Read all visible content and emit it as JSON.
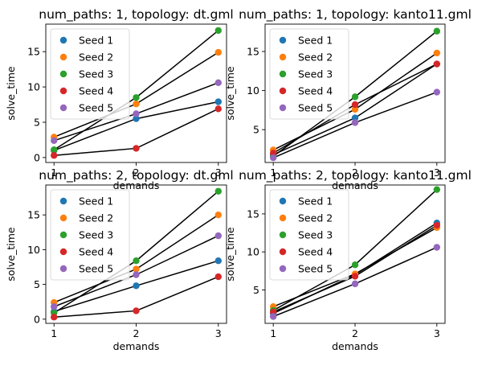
{
  "chart_data": [
    {
      "type": "scatter",
      "title": "num_paths: 1, topology: dt.gml",
      "xlabel": "demands",
      "ylabel": "solve_time",
      "x": [
        1,
        2,
        3
      ],
      "xticks": [
        "1",
        "2",
        "3"
      ],
      "yticks": [
        "0",
        "5",
        "10",
        "15"
      ],
      "xlim": [
        0.9,
        3.1
      ],
      "ylim": [
        -0.7,
        18.9
      ],
      "grid": false,
      "legend": "top-left",
      "connect_lines": true,
      "series": [
        {
          "name": "Seed 1",
          "values": [
            1.0,
            5.5,
            7.9
          ]
        },
        {
          "name": "Seed 2",
          "values": [
            2.9,
            7.6,
            14.9
          ]
        },
        {
          "name": "Seed 3",
          "values": [
            1.1,
            8.5,
            18.0
          ]
        },
        {
          "name": "Seed 4",
          "values": [
            0.3,
            1.3,
            6.9
          ]
        },
        {
          "name": "Seed 5",
          "values": [
            2.4,
            6.2,
            10.6
          ]
        }
      ]
    },
    {
      "type": "scatter",
      "title": "num_paths: 1, topology: kanto11.gml",
      "xlabel": "demands",
      "ylabel": "solve_time",
      "x": [
        1,
        2,
        3
      ],
      "xticks": [
        "1",
        "2",
        "3"
      ],
      "yticks": [
        "5",
        "10",
        "15"
      ],
      "xlim": [
        0.9,
        3.1
      ],
      "ylim": [
        0.8,
        18.5
      ],
      "grid": false,
      "legend": "top-left",
      "connect_lines": true,
      "series": [
        {
          "name": "Seed 1",
          "values": [
            1.8,
            6.5,
            13.4
          ]
        },
        {
          "name": "Seed 2",
          "values": [
            2.4,
            7.6,
            14.8
          ]
        },
        {
          "name": "Seed 3",
          "values": [
            1.6,
            9.2,
            17.6
          ]
        },
        {
          "name": "Seed 4",
          "values": [
            2.0,
            8.2,
            13.4
          ]
        },
        {
          "name": "Seed 5",
          "values": [
            1.4,
            5.9,
            9.8
          ]
        }
      ]
    },
    {
      "type": "scatter",
      "title": "num_paths: 2, topology: dt.gml",
      "xlabel": "demands",
      "ylabel": "solve_time",
      "x": [
        1,
        2,
        3
      ],
      "xticks": [
        "1",
        "2",
        "3"
      ],
      "yticks": [
        "0",
        "5",
        "10",
        "15"
      ],
      "xlim": [
        0.9,
        3.1
      ],
      "ylim": [
        -0.6,
        19.3
      ],
      "grid": false,
      "legend": "top-left",
      "connect_lines": true,
      "series": [
        {
          "name": "Seed 1",
          "values": [
            1.1,
            4.8,
            8.4
          ]
        },
        {
          "name": "Seed 2",
          "values": [
            2.4,
            7.2,
            15.0
          ]
        },
        {
          "name": "Seed 3",
          "values": [
            0.9,
            8.4,
            18.4
          ]
        },
        {
          "name": "Seed 4",
          "values": [
            0.3,
            1.2,
            6.1
          ]
        },
        {
          "name": "Seed 5",
          "values": [
            1.8,
            6.4,
            12.0
          ]
        }
      ]
    },
    {
      "type": "scatter",
      "title": "num_paths: 2, topology: kanto11.gml",
      "xlabel": "demands",
      "ylabel": "solve_time",
      "x": [
        1,
        2,
        3
      ],
      "xticks": [
        "1",
        "2",
        "3"
      ],
      "yticks": [
        "5",
        "10",
        "15"
      ],
      "xlim": [
        0.9,
        3.1
      ],
      "ylim": [
        0.6,
        18.8
      ],
      "grid": false,
      "legend": "top-left",
      "connect_lines": true,
      "series": [
        {
          "name": "Seed 1",
          "values": [
            1.9,
            7.0,
            13.8
          ]
        },
        {
          "name": "Seed 2",
          "values": [
            2.8,
            7.1,
            13.2
          ]
        },
        {
          "name": "Seed 3",
          "values": [
            2.3,
            8.3,
            18.2
          ]
        },
        {
          "name": "Seed 4",
          "values": [
            2.1,
            6.8,
            13.5
          ]
        },
        {
          "name": "Seed 5",
          "values": [
            1.5,
            5.8,
            10.6
          ]
        }
      ]
    }
  ],
  "colors": {
    "series": [
      "#1f77b4",
      "#ff7f0e",
      "#2ca02c",
      "#d62728",
      "#9467bd"
    ],
    "line": "#000000",
    "axis": "#000000",
    "legend_border": "#d0d0d0"
  }
}
